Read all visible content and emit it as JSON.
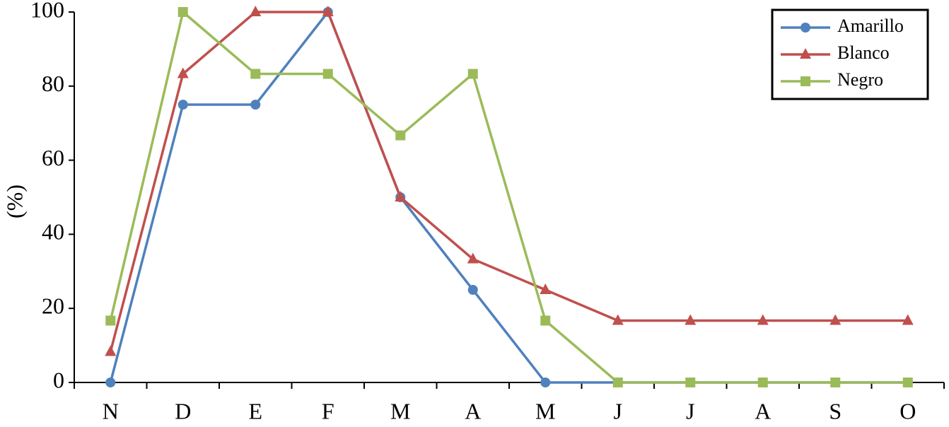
{
  "chart_data": {
    "type": "line",
    "y_label": "(%)",
    "categories": [
      "N",
      "D",
      "E",
      "F",
      "M",
      "A",
      "M",
      "J",
      "J",
      "A",
      "S",
      "O"
    ],
    "series": [
      {
        "name": "Amarillo",
        "color": "#4f81bd",
        "marker": "circle",
        "values": [
          0,
          75,
          75,
          100,
          50,
          25,
          0,
          0,
          0,
          0,
          0,
          0
        ]
      },
      {
        "name": "Blanco",
        "color": "#c0504d",
        "marker": "triangle",
        "values": [
          8.3,
          83.3,
          100,
          100,
          50,
          33.3,
          25,
          16.7,
          16.7,
          16.7,
          16.7,
          16.7
        ]
      },
      {
        "name": "Negro",
        "color": "#9bbb59",
        "marker": "square",
        "values": [
          16.7,
          100,
          83.3,
          83.3,
          66.7,
          83.3,
          16.7,
          0,
          0,
          0,
          0,
          0
        ]
      }
    ],
    "ylim": [
      0,
      100
    ],
    "yticks": [
      0,
      20,
      40,
      60,
      80,
      100
    ],
    "legend": "top-right"
  }
}
